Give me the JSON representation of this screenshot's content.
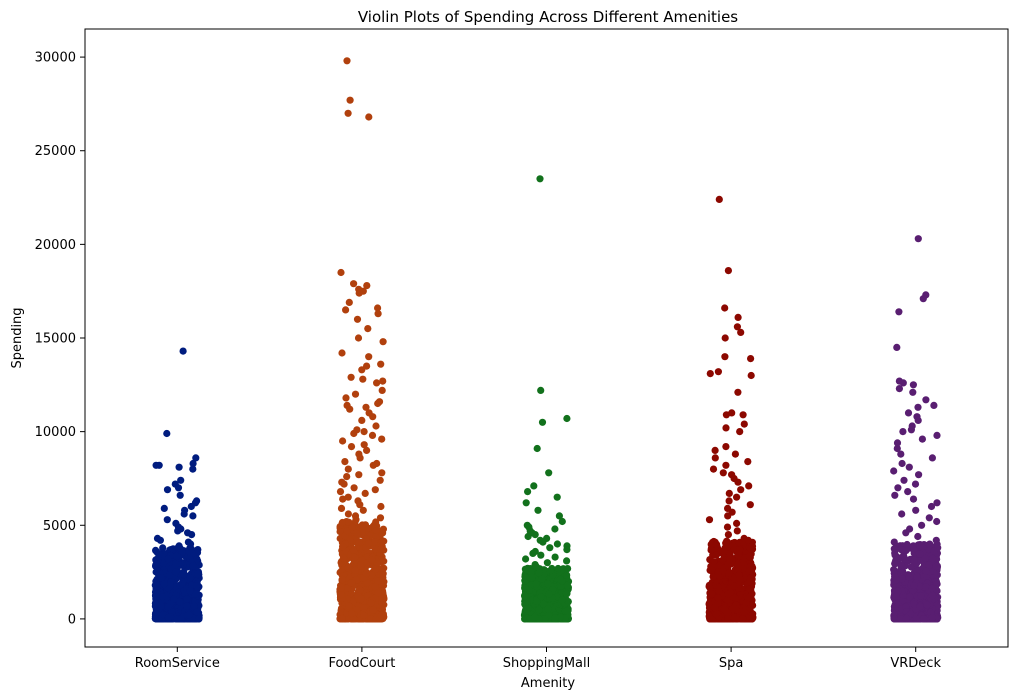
{
  "chart_data": {
    "type": "scatter",
    "subtype": "strip",
    "title": "Violin Plots of Spending Across Different Amenities",
    "xlabel": "Amenity",
    "ylabel": "Spending",
    "ylim": [
      -1500,
      31500
    ],
    "yticks": [
      0,
      5000,
      10000,
      15000,
      20000,
      25000,
      30000
    ],
    "yticklabels": [
      "0",
      "5000",
      "10000",
      "15000",
      "20000",
      "25000",
      "30000"
    ],
    "grid": false,
    "legend": "none",
    "categories": [
      "RoomService",
      "FoodCourt",
      "ShoppingMall",
      "Spa",
      "VRDeck"
    ],
    "series": [
      {
        "category": "RoomService",
        "color": "#001c7f",
        "dense_max": 3800,
        "values": [
          14300,
          9900,
          8600,
          8300,
          8200,
          8200,
          8100,
          8000,
          7400,
          7200,
          7000,
          6900,
          6600,
          6300,
          6200,
          6000,
          5900,
          5800,
          5600,
          5500,
          5300,
          5100,
          4900,
          4800,
          4700,
          4600,
          4500,
          4300,
          4200,
          4100,
          4000,
          3900
        ]
      },
      {
        "category": "FoodCourt",
        "color": "#b1400d",
        "dense_max": 5200,
        "values": [
          29800,
          27700,
          27000,
          26800,
          18500,
          17900,
          17800,
          17600,
          17500,
          17400,
          16900,
          16600,
          16500,
          16300,
          16000,
          15500,
          15000,
          14800,
          14200,
          14000,
          13600,
          13500,
          13300,
          12900,
          12800,
          12700,
          12600,
          12200,
          12000,
          11800,
          11600,
          11500,
          11400,
          11300,
          11200,
          11000,
          10800,
          10600,
          10300,
          10100,
          10000,
          9900,
          9800,
          9600,
          9500,
          9300,
          9200,
          9000,
          8800,
          8600,
          8400,
          8300,
          8200,
          8000,
          7800,
          7700,
          7600,
          7400,
          7300,
          7200,
          7000,
          6900,
          6800,
          6700,
          6500,
          6400,
          6300,
          6100,
          6000,
          5900,
          5800,
          5600,
          5500,
          5400,
          5300
        ]
      },
      {
        "category": "ShoppingMall",
        "color": "#12711c",
        "dense_max": 2700,
        "values": [
          23500,
          12200,
          10700,
          10500,
          9100,
          7800,
          7100,
          6800,
          6500,
          6200,
          5800,
          5500,
          5200,
          5000,
          4900,
          4800,
          4700,
          4600,
          4500,
          4400,
          4300,
          4200,
          4100,
          4000,
          3900,
          3800,
          3700,
          3600,
          3500,
          3400,
          3300,
          3200,
          3100,
          3000,
          2900,
          2800
        ]
      },
      {
        "category": "Spa",
        "color": "#8c0800",
        "dense_max": 4200,
        "values": [
          22400,
          18600,
          16600,
          16100,
          15600,
          15300,
          15000,
          14000,
          13900,
          13200,
          13100,
          13000,
          12100,
          11000,
          10900,
          10900,
          10400,
          10200,
          10000,
          9200,
          9000,
          8800,
          8600,
          8400,
          8200,
          8000,
          7800,
          7700,
          7500,
          7300,
          7100,
          6900,
          6700,
          6500,
          6300,
          6100,
          5900,
          5700,
          5500,
          5300,
          5100,
          4900,
          4700,
          4500,
          4300
        ]
      },
      {
        "category": "VRDeck",
        "color": "#591e71",
        "dense_max": 4000,
        "values": [
          20300,
          17300,
          17100,
          16400,
          14500,
          12700,
          12600,
          12500,
          12300,
          12100,
          11700,
          11400,
          11300,
          11000,
          10800,
          10600,
          10300,
          10100,
          10000,
          9800,
          9600,
          9400,
          9100,
          8800,
          8600,
          8300,
          8100,
          7900,
          7700,
          7400,
          7200,
          7000,
          6800,
          6600,
          6400,
          6200,
          6000,
          5800,
          5600,
          5400,
          5200,
          5000,
          4800,
          4600,
          4400,
          4200,
          4100
        ]
      }
    ]
  }
}
